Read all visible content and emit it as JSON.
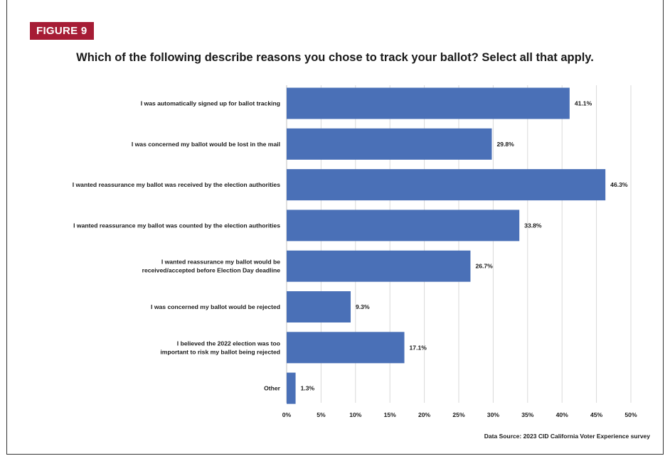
{
  "figure_label": "FIGURE 9",
  "source_text": "Data Source: 2023 CID California Voter Experience survey",
  "chart_data": {
    "type": "bar",
    "orientation": "horizontal",
    "title": "Which of the following describe reasons you chose to track your ballot? Select all that apply.",
    "categories": [
      [
        "I was automatically signed up for ballot tracking"
      ],
      [
        "I was concerned my ballot would be lost in the mail"
      ],
      [
        "I wanted reassurance my ballot was received by the election authorities"
      ],
      [
        "I wanted reassurance my ballot was counted by the election authorities"
      ],
      [
        "I wanted reassurance my ballot would be",
        "received/accepted before Election Day deadline"
      ],
      [
        "I was concerned my ballot would be rejected"
      ],
      [
        "I believed the 2022 election was too",
        "important to risk my ballot being rejected"
      ],
      [
        "Other"
      ]
    ],
    "values": [
      41.1,
      29.8,
      46.3,
      33.8,
      26.7,
      9.3,
      17.1,
      1.3
    ],
    "value_labels": [
      "41.1%",
      "29.8%",
      "46.3%",
      "33.8%",
      "26.7%",
      "9.3%",
      "17.1%",
      "1.3%"
    ],
    "xlim": [
      0,
      50
    ],
    "xticks": [
      "0%",
      "5%",
      "10%",
      "15%",
      "20%",
      "25%",
      "30%",
      "35%",
      "40%",
      "45%",
      "50%"
    ],
    "grid": "vertical",
    "bar_color": "#4a70b7"
  }
}
